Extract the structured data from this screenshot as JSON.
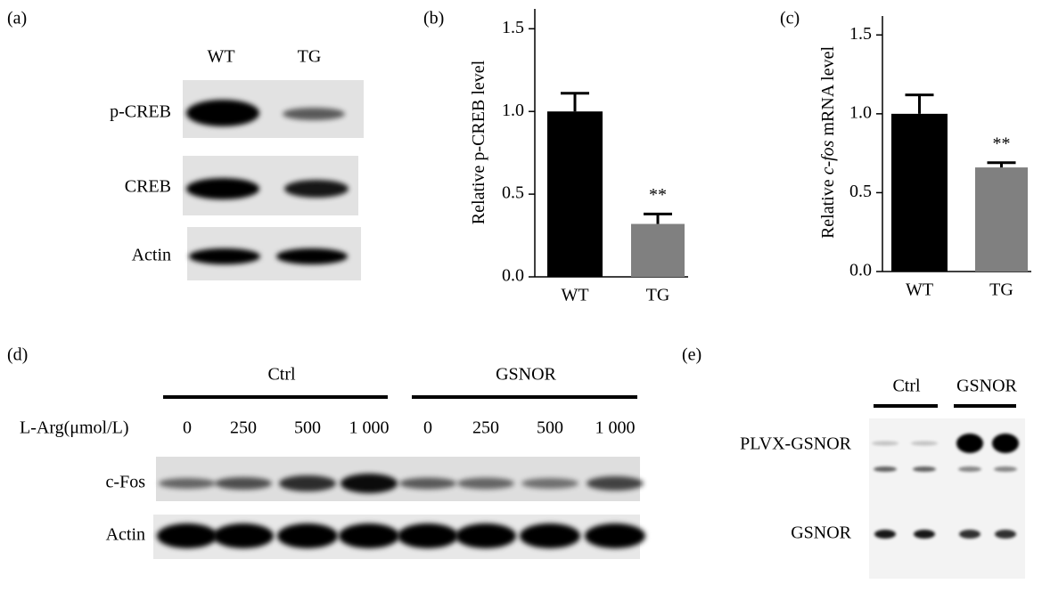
{
  "panels": {
    "a": {
      "label": "(a)",
      "columns": [
        "WT",
        "TG"
      ],
      "rows": [
        "p-CREB",
        "CREB",
        "Actin"
      ]
    },
    "d": {
      "label": "(d)",
      "groups": [
        "Ctrl",
        "GSNOR"
      ],
      "dose_label": "L-Arg(μmol/L)",
      "doses": [
        "0",
        "250",
        "500",
        "1 000",
        "0",
        "250",
        "500",
        "1 000"
      ],
      "rows": [
        "c-Fos",
        "Actin"
      ]
    },
    "e": {
      "label": "(e)",
      "groups": [
        "Ctrl",
        "GSNOR"
      ],
      "rows": [
        "PLVX-GSNOR",
        "GSNOR"
      ]
    }
  },
  "chart_data": [
    {
      "type": "bar",
      "label": "(b)",
      "ylabel": [
        {
          "text": "Relative p-CREB level"
        }
      ],
      "categories": [
        "WT",
        "TG"
      ],
      "values": [
        1.0,
        0.32
      ],
      "errors": [
        0.11,
        0.06
      ],
      "significance": [
        null,
        "**"
      ],
      "colors": [
        "#000000",
        "#808080"
      ],
      "ylim": [
        0,
        1.62
      ],
      "yticks": [
        {
          "value": 0,
          "label": "0.0"
        },
        0.5,
        {
          "value": 1,
          "label": "1.0"
        },
        1.5
      ]
    },
    {
      "type": "bar",
      "label": "(c)",
      "ylabel": [
        {
          "text": "Relative "
        },
        {
          "text": "c-fos",
          "italic": true
        },
        {
          "text": " mRNA level"
        }
      ],
      "categories": [
        "WT",
        "TG"
      ],
      "values": [
        1.0,
        0.66
      ],
      "errors": [
        0.12,
        0.03
      ],
      "significance": [
        null,
        "**"
      ],
      "colors": [
        "#000000",
        "#808080"
      ],
      "ylim": [
        0,
        1.62
      ],
      "yticks": [
        {
          "value": 0,
          "label": "0.0"
        },
        0.5,
        {
          "value": 1,
          "label": "1.0"
        },
        1.5
      ]
    }
  ]
}
